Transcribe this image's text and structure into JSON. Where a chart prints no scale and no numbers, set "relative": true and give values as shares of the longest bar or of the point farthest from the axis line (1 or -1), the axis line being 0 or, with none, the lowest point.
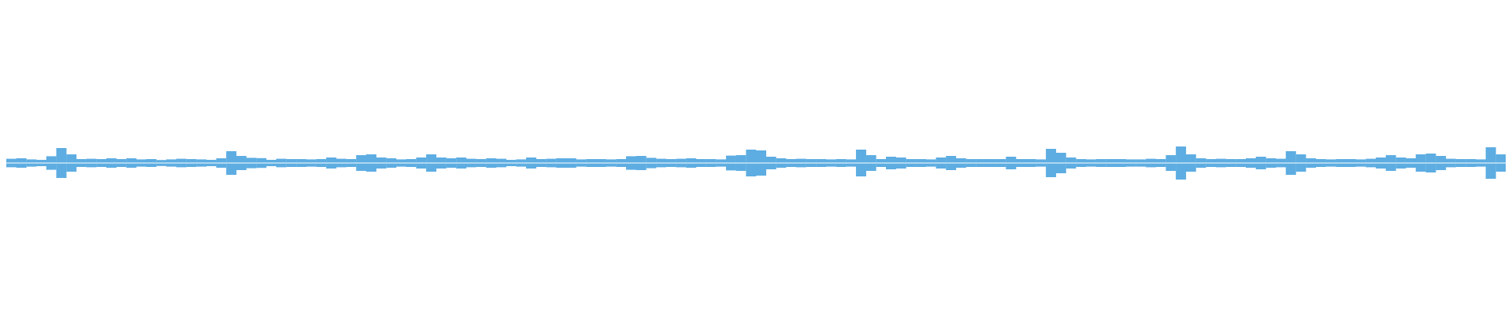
{
  "chart_data": [
    {
      "type": "bar",
      "relative": true,
      "categories": [
        null,
        null,
        null,
        null,
        null,
        null,
        null,
        null,
        null,
        null,
        null,
        null,
        null,
        null,
        null,
        null,
        null,
        null,
        null,
        null,
        null,
        null,
        null,
        null,
        null,
        null,
        null,
        null,
        null,
        null,
        null,
        null,
        null,
        null,
        null,
        null,
        null,
        null,
        null,
        null,
        null,
        null,
        null,
        null,
        null,
        null,
        null,
        null,
        null,
        null,
        null,
        null,
        null,
        null,
        null,
        null,
        null,
        null,
        null,
        null,
        null,
        null,
        null,
        null,
        null,
        null,
        null,
        null,
        null,
        null,
        null,
        null,
        null,
        null,
        null,
        null,
        null,
        null,
        null,
        null,
        null,
        null,
        null,
        null,
        null,
        null,
        null,
        null,
        null,
        null,
        null,
        null,
        null,
        null,
        null,
        null,
        null,
        null,
        null,
        null,
        null,
        null,
        null,
        null,
        null,
        null,
        null,
        null,
        null,
        null,
        null,
        null,
        null,
        null,
        null,
        null,
        null,
        null,
        null,
        null,
        null,
        null,
        null,
        null,
        null,
        null,
        null,
        null,
        null,
        null,
        null,
        null,
        null,
        null,
        null,
        null,
        null,
        null,
        null,
        null,
        null,
        null,
        null,
        null,
        null,
        null,
        null,
        null,
        null,
        null
      ],
      "series": [
        {
          "color": "#5dade2",
          "values": [
            0.22,
            0.25,
            0.18,
            0.15,
            0.38,
            0.9,
            0.5,
            0.2,
            0.22,
            0.2,
            0.25,
            0.2,
            0.25,
            0.18,
            0.2,
            0.14,
            0.18,
            0.22,
            0.2,
            0.18,
            0.15,
            0.25,
            0.7,
            0.4,
            0.28,
            0.26,
            0.15,
            0.22,
            0.2,
            0.2,
            0.18,
            0.2,
            0.3,
            0.22,
            0.2,
            0.45,
            0.5,
            0.3,
            0.25,
            0.18,
            0.2,
            0.3,
            0.5,
            0.3,
            0.25,
            0.3,
            0.22,
            0.2,
            0.25,
            0.22,
            0.15,
            0.18,
            0.3,
            0.2,
            0.22,
            0.25,
            0.25,
            0.18,
            0.2,
            0.2,
            0.18,
            0.2,
            0.38,
            0.4,
            0.28,
            0.22,
            0.2,
            0.22,
            0.25,
            0.2,
            0.2,
            0.18,
            0.42,
            0.45,
            0.8,
            0.75,
            0.35,
            0.25,
            0.2,
            0.22,
            0.2,
            0.2,
            0.18,
            0.2,
            0.18,
            0.8,
            0.45,
            0.2,
            0.35,
            0.3,
            0.2,
            0.2,
            0.18,
            0.3,
            0.4,
            0.25,
            0.2,
            0.2,
            0.2,
            0.2,
            0.35,
            0.2,
            0.2,
            0.18,
            0.85,
            0.6,
            0.3,
            0.2,
            0.18,
            0.2,
            0.2,
            0.2,
            0.18,
            0.18,
            0.22,
            0.2,
            0.45,
            1,
            0.5,
            0.25,
            0.2,
            0.22,
            0.2,
            0.2,
            0.25,
            0.35,
            0.25,
            0.22,
            0.7,
            0.5,
            0.25,
            0.2,
            0.18,
            0.2,
            0.2,
            0.18,
            0.22,
            0.3,
            0.45,
            0.3,
            0.25,
            0.5,
            0.55,
            0.4,
            0.22,
            0.2,
            0.2,
            0.18,
            0.95,
            0.5
          ]
        }
      ]
    },
    {
      "type": "bar",
      "relative": true,
      "categories": [
        null,
        null,
        null,
        null,
        null,
        null,
        null,
        null,
        null,
        null,
        null,
        null,
        null,
        null,
        null,
        null,
        null,
        null,
        null,
        null,
        null,
        null,
        null,
        null,
        null,
        null,
        null,
        null,
        null,
        null,
        null,
        null,
        null,
        null,
        null,
        null,
        null,
        null,
        null,
        null,
        null,
        null,
        null,
        null,
        null,
        null,
        null,
        null,
        null,
        null,
        null,
        null,
        null,
        null,
        null,
        null,
        null,
        null,
        null,
        null,
        null,
        null,
        null,
        null,
        null,
        null,
        null,
        null,
        null,
        null,
        null,
        null,
        null,
        null,
        null,
        null,
        null,
        null,
        null,
        null,
        null,
        null,
        null,
        null,
        null,
        null,
        null,
        null,
        null,
        null,
        null,
        null,
        null,
        null,
        null,
        null,
        null,
        null,
        null,
        null,
        null,
        null,
        null,
        null,
        null,
        null,
        null,
        null,
        null,
        null,
        null,
        null,
        null,
        null,
        null,
        null,
        null,
        null,
        null,
        null,
        null,
        null,
        null,
        null,
        null,
        null,
        null,
        null,
        null,
        null,
        null,
        null,
        null,
        null,
        null,
        null,
        null,
        null,
        null,
        null,
        null,
        null,
        null,
        null,
        null,
        null,
        null,
        null,
        null,
        null
      ],
      "series": [
        {
          "color": "#5dade2",
          "values": [
            -0.22,
            -0.25,
            -0.18,
            -0.15,
            -0.38,
            -0.9,
            -0.5,
            -0.2,
            -0.22,
            -0.2,
            -0.25,
            -0.2,
            -0.25,
            -0.18,
            -0.2,
            -0.14,
            -0.18,
            -0.22,
            -0.2,
            -0.18,
            -0.15,
            -0.25,
            -0.7,
            -0.4,
            -0.28,
            -0.26,
            -0.15,
            -0.22,
            -0.2,
            -0.2,
            -0.18,
            -0.2,
            -0.3,
            -0.22,
            -0.2,
            -0.45,
            -0.5,
            -0.3,
            -0.25,
            -0.18,
            -0.2,
            -0.3,
            -0.5,
            -0.3,
            -0.25,
            -0.3,
            -0.22,
            -0.2,
            -0.25,
            -0.22,
            -0.15,
            -0.18,
            -0.3,
            -0.2,
            -0.22,
            -0.25,
            -0.25,
            -0.18,
            -0.2,
            -0.2,
            -0.18,
            -0.2,
            -0.38,
            -0.4,
            -0.28,
            -0.22,
            -0.2,
            -0.22,
            -0.25,
            -0.2,
            -0.2,
            -0.18,
            -0.42,
            -0.45,
            -0.8,
            -0.75,
            -0.35,
            -0.25,
            -0.2,
            -0.22,
            -0.2,
            -0.2,
            -0.18,
            -0.2,
            -0.18,
            -0.8,
            -0.45,
            -0.2,
            -0.35,
            -0.3,
            -0.2,
            -0.2,
            -0.18,
            -0.3,
            -0.4,
            -0.25,
            -0.2,
            -0.2,
            -0.2,
            -0.2,
            -0.35,
            -0.2,
            -0.2,
            -0.18,
            -0.85,
            -0.6,
            -0.3,
            -0.2,
            -0.18,
            -0.2,
            -0.2,
            -0.2,
            -0.18,
            -0.18,
            -0.22,
            -0.2,
            -0.45,
            -1,
            -0.5,
            -0.25,
            -0.2,
            -0.22,
            -0.2,
            -0.2,
            -0.25,
            -0.35,
            -0.25,
            -0.22,
            -0.7,
            -0.5,
            -0.25,
            -0.2,
            -0.18,
            -0.2,
            -0.2,
            -0.18,
            -0.22,
            -0.3,
            -0.45,
            -0.3,
            -0.25,
            -0.5,
            -0.55,
            -0.4,
            -0.22,
            -0.2,
            -0.2,
            -0.18,
            -0.95,
            -0.5
          ]
        }
      ]
    }
  ]
}
